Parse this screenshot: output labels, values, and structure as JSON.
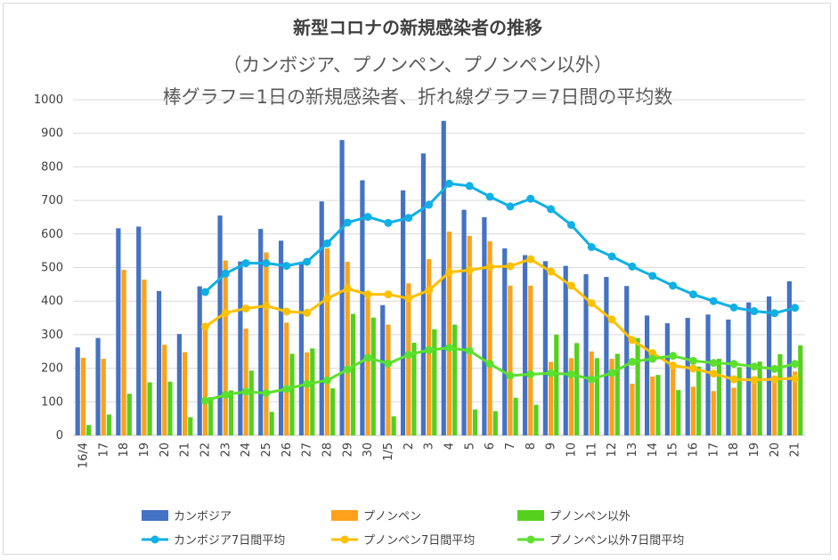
{
  "chart_data": {
    "type": "bar",
    "title": "新型コロナの新規感染者の推移",
    "subtitle": "（カンボジア、プノンペン、プノンペン以外）",
    "subtitle2": "棒グラフ＝1日の新規感染者、折れ線グラフ＝7日間の平均数",
    "categories": [
      "16/4",
      "17",
      "18",
      "19",
      "20",
      "21",
      "22",
      "23",
      "24",
      "25",
      "26",
      "27",
      "28",
      "29",
      "30",
      "1/5",
      "2",
      "3",
      "4",
      "5",
      "6",
      "7",
      "8",
      "9",
      "10",
      "11",
      "12",
      "13",
      "14",
      "15",
      "16",
      "17",
      "18",
      "19",
      "20",
      "21"
    ],
    "ylim": [
      0,
      1000
    ],
    "yticks": [
      0,
      100,
      200,
      300,
      400,
      500,
      600,
      700,
      800,
      900,
      1000
    ],
    "grid": true,
    "legend_position": "bottom",
    "series": [
      {
        "name": "カンボジア",
        "kind": "bar",
        "color": "#4472c4",
        "values": [
          262,
          290,
          617,
          622,
          430,
          302,
          444,
          655,
          518,
          615,
          580,
          517,
          697,
          880,
          760,
          388,
          730,
          840,
          937,
          672,
          650,
          557,
          537,
          519,
          505,
          480,
          472,
          445,
          357,
          334,
          350,
          360,
          345,
          396,
          414,
          459
        ]
      },
      {
        "name": "プノンペン",
        "kind": "bar",
        "color": "#ffa11a",
        "values": [
          231,
          228,
          493,
          464,
          270,
          248,
          330,
          521,
          318,
          545,
          336,
          247,
          557,
          517,
          408,
          330,
          453,
          525,
          607,
          594,
          578,
          446,
          446,
          219,
          230,
          250,
          228,
          154,
          175,
          199,
          145,
          132,
          142,
          175,
          175,
          190
        ]
      },
      {
        "name": "プノンペン以外",
        "kind": "bar",
        "color": "#55d11d",
        "values": [
          31,
          62,
          124,
          158,
          160,
          54,
          114,
          134,
          193,
          70,
          243,
          259,
          140,
          362,
          351,
          57,
          276,
          316,
          330,
          77,
          72,
          112,
          91,
          300,
          275,
          230,
          243,
          290,
          180,
          135,
          205,
          228,
          203,
          220,
          242,
          268
        ]
      },
      {
        "name": "カンボジア7日間平均",
        "kind": "line",
        "color": "#0fb0e6",
        "values": [
          null,
          null,
          null,
          null,
          null,
          null,
          427,
          482,
          513,
          513,
          505,
          517,
          572,
          634,
          651,
          633,
          648,
          687,
          750,
          743,
          711,
          682,
          705,
          674,
          627,
          561,
          533,
          503,
          475,
          446,
          420,
          400,
          381,
          370,
          364,
          380
        ]
      },
      {
        "name": "プノンペン7日間平均",
        "kind": "line",
        "color": "#ffc000",
        "values": [
          null,
          null,
          null,
          null,
          null,
          null,
          324,
          365,
          378,
          386,
          369,
          365,
          408,
          437,
          420,
          420,
          408,
          432,
          486,
          492,
          502,
          504,
          525,
          488,
          446,
          394,
          345,
          284,
          245,
          208,
          199,
          184,
          167,
          165,
          167,
          170
        ]
      },
      {
        "name": "プノンペン以外7日間平均",
        "kind": "line",
        "color": "#5ce02e",
        "values": [
          null,
          null,
          null,
          null,
          null,
          null,
          103,
          121,
          130,
          126,
          138,
          153,
          164,
          196,
          231,
          214,
          240,
          254,
          261,
          252,
          213,
          178,
          182,
          185,
          182,
          167,
          186,
          219,
          228,
          237,
          222,
          216,
          213,
          205,
          198,
          213
        ]
      }
    ]
  }
}
